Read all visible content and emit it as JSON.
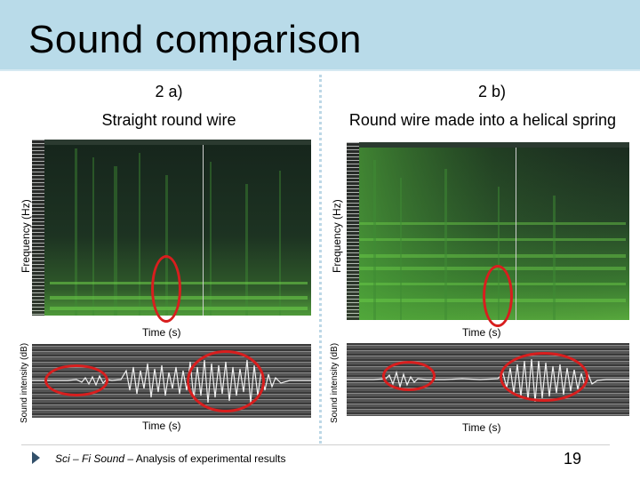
{
  "slide": {
    "title": "Sound comparison",
    "footer": {
      "prefix": "Sci – Fi Sound",
      "suffix": " – Analysis of experimental results"
    },
    "page_number": "19"
  },
  "left": {
    "heading_line1": "2 a)",
    "heading_line2": "Straight round wire",
    "spectrogram_ylabel": "Frequency (Hz)",
    "spectrogram_xlabel": "Time (s)",
    "waveform_ylabel": "Sound intensity (dB)",
    "waveform_xlabel": "Time (s)"
  },
  "right": {
    "heading_line1": "2 b)",
    "heading_line2": "Round wire made into a helical spring",
    "spectrogram_ylabel": "Frequency (Hz)",
    "spectrogram_xlabel": "Time (s)",
    "waveform_ylabel": "Sound intensity (dB)",
    "waveform_xlabel": "Time (s)"
  },
  "colors": {
    "title_band": "#b9dbe9",
    "highlight": "#d81e1e",
    "spectrogram_signal": "#3fae3a"
  },
  "icons": {
    "footer_bullet": "triangle-right-icon"
  }
}
